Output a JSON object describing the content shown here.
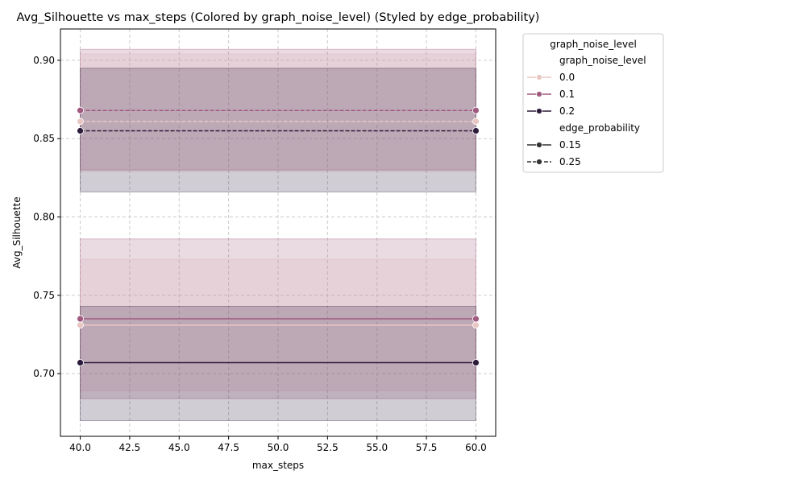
{
  "chart_data": {
    "type": "line",
    "title": "Avg_Silhouette vs max_steps (Colored by graph_noise_level) (Styled by edge_probability)",
    "xlabel": "max_steps",
    "ylabel": "Avg_Silhouette",
    "xlim": [
      39.0,
      61.0
    ],
    "ylim": [
      0.66,
      0.92
    ],
    "x_ticks": [
      40.0,
      42.5,
      45.0,
      47.5,
      50.0,
      52.5,
      55.0,
      57.5,
      60.0
    ],
    "x_tick_labels": [
      "40.0",
      "42.5",
      "45.0",
      "47.5",
      "50.0",
      "52.5",
      "55.0",
      "57.5",
      "60.0"
    ],
    "y_ticks": [
      0.7,
      0.75,
      0.8,
      0.85,
      0.9
    ],
    "y_tick_labels": [
      "0.70",
      "0.75",
      "0.80",
      "0.85",
      "0.90"
    ],
    "grid": true,
    "legend_placement": "outside-top-right",
    "legend": {
      "title": "graph_noise_level",
      "hue_header": "graph_noise_level",
      "hue_entries": [
        {
          "label": "0.0",
          "color": "#e8c7c3"
        },
        {
          "label": "0.1",
          "color": "#a0597f"
        },
        {
          "label": "0.2",
          "color": "#2c1b3a"
        }
      ],
      "style_header": "edge_probability",
      "style_entries": [
        {
          "label": "0.15",
          "dash": "solid"
        },
        {
          "label": "0.25",
          "dash": "dashed"
        }
      ]
    },
    "series": [
      {
        "noise": "0.0",
        "edge": "0.15",
        "color": "#e8c7c3",
        "dash": "solid",
        "x": [
          40,
          60
        ],
        "y": [
          0.731,
          0.731
        ],
        "ci": [
          0.689,
          0.773
        ]
      },
      {
        "noise": "0.0",
        "edge": "0.25",
        "color": "#e8c7c3",
        "dash": "dashed",
        "x": [
          40,
          60
        ],
        "y": [
          0.861,
          0.861
        ],
        "ci": [
          0.829,
          0.904
        ]
      },
      {
        "noise": "0.1",
        "edge": "0.15",
        "color": "#a0597f",
        "dash": "solid",
        "x": [
          40,
          60
        ],
        "y": [
          0.735,
          0.735
        ],
        "ci": [
          0.684,
          0.786
        ]
      },
      {
        "noise": "0.1",
        "edge": "0.25",
        "color": "#a0597f",
        "dash": "dashed",
        "x": [
          40,
          60
        ],
        "y": [
          0.868,
          0.868
        ],
        "ci": [
          0.83,
          0.907
        ]
      },
      {
        "noise": "0.2",
        "edge": "0.15",
        "color": "#2c1b3a",
        "dash": "solid",
        "x": [
          40,
          60
        ],
        "y": [
          0.707,
          0.707
        ],
        "ci": [
          0.67,
          0.743
        ]
      },
      {
        "noise": "0.2",
        "edge": "0.25",
        "color": "#2c1b3a",
        "dash": "dashed",
        "x": [
          40,
          60
        ],
        "y": [
          0.855,
          0.855
        ],
        "ci": [
          0.816,
          0.895
        ]
      }
    ]
  }
}
